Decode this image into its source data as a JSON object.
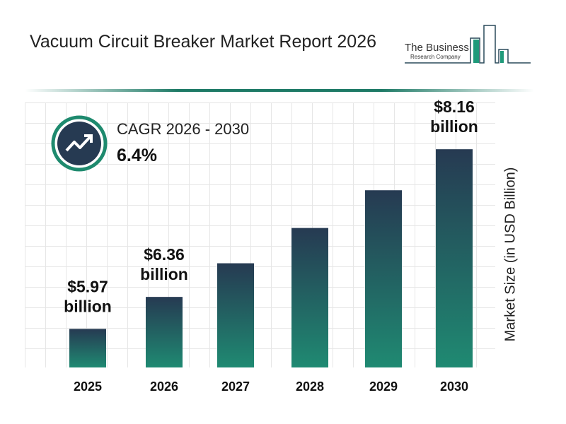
{
  "title": "Vacuum Circuit Breaker Market Report 2026",
  "logo": {
    "line1": "The Business",
    "line2": "Research Company"
  },
  "cagr": {
    "label": "CAGR 2026 - 2030",
    "value": "6.4%",
    "icon": "trend-up-icon"
  },
  "colors": {
    "bar_top": "#263a52",
    "bar_bottom": "#1f8a72",
    "accent": "#1e7a66"
  },
  "chart_data": {
    "type": "bar",
    "categories": [
      "2025",
      "2026",
      "2027",
      "2028",
      "2029",
      "2030"
    ],
    "values": [
      5.97,
      6.36,
      6.77,
      7.2,
      7.66,
      8.16
    ],
    "data_labels": [
      "$5.97 billion",
      "$6.36 billion",
      "",
      "",
      "",
      "$8.16 billion"
    ],
    "ylabel": "Market Size (in USD Billion)",
    "xlabel": "",
    "ylim": [
      5.5,
      8.73
    ],
    "grid": true
  }
}
